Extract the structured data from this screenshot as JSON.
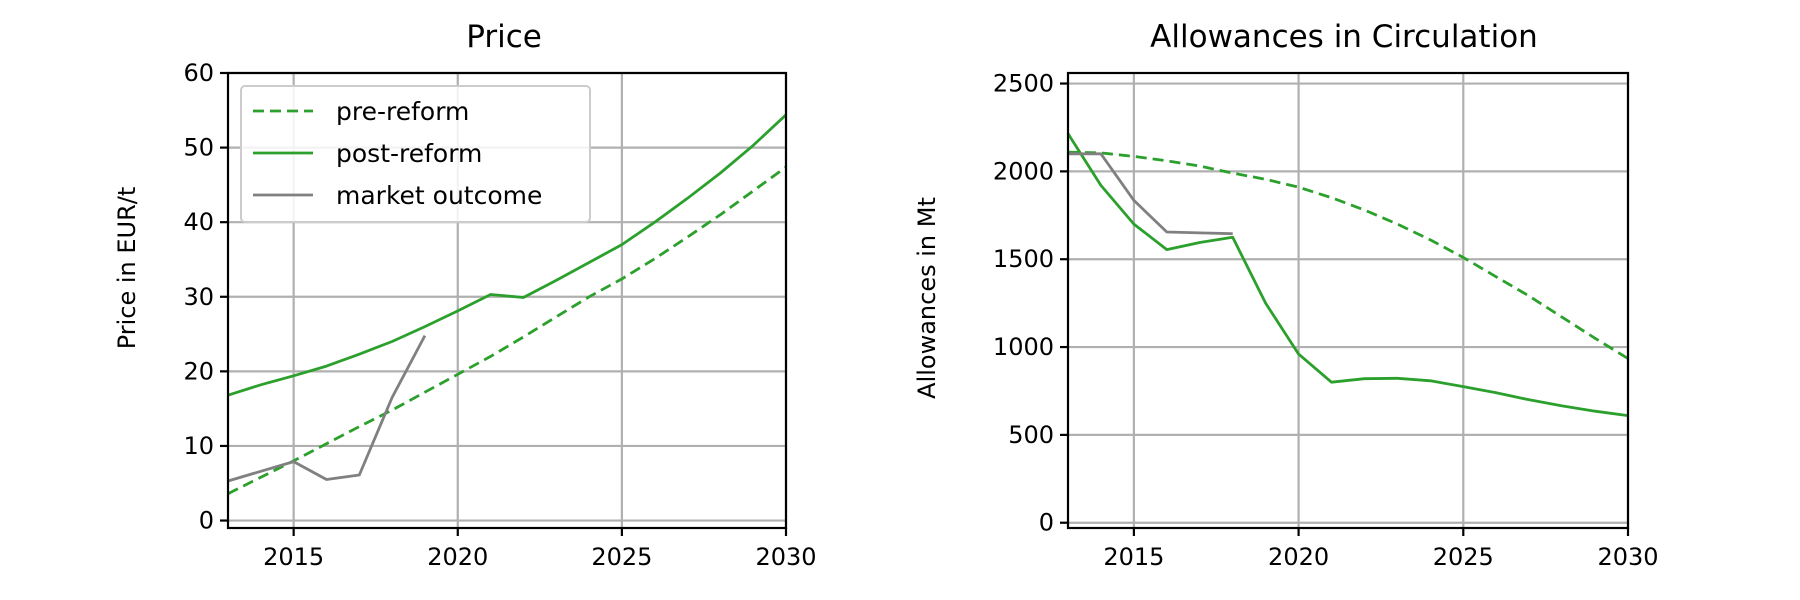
{
  "colors": {
    "pre_reform": "#2ca02c",
    "post_reform": "#2ca02c",
    "market_outcome": "#808080"
  },
  "chart_data": [
    {
      "type": "line",
      "title": "Price",
      "xlabel": "",
      "ylabel": "Price in EUR/t",
      "xlim": [
        2013,
        2030
      ],
      "ylim": [
        -1,
        60
      ],
      "xticks": [
        2015,
        2020,
        2025,
        2030
      ],
      "yticks": [
        0,
        10,
        20,
        30,
        40,
        50,
        60
      ],
      "xtick_labels": [
        "2015",
        "2020",
        "2025",
        "2030"
      ],
      "ytick_labels": [
        "0",
        "10",
        "20",
        "30",
        "40",
        "50",
        "60"
      ],
      "grid": true,
      "legend": {
        "placement": "top-left",
        "entries": [
          {
            "label": "pre-reform",
            "style": "dashed",
            "color": "#2ca02c"
          },
          {
            "label": "post-reform",
            "style": "solid",
            "color": "#2ca02c"
          },
          {
            "label": "market outcome",
            "style": "solid",
            "color": "#808080"
          }
        ]
      },
      "series": [
        {
          "name": "pre-reform",
          "style": "dashed",
          "color": "#2ca02c",
          "x": [
            2013,
            2014,
            2015,
            2016,
            2017,
            2018,
            2019,
            2020,
            2021,
            2022,
            2023,
            2024,
            2025,
            2026,
            2027,
            2028,
            2029,
            2030
          ],
          "y": [
            3.6,
            5.8,
            8.0,
            10.3,
            12.6,
            14.8,
            17.2,
            19.6,
            22.0,
            24.6,
            27.3,
            30.0,
            32.4,
            35.1,
            38.0,
            41.0,
            44.2,
            47.4
          ]
        },
        {
          "name": "post-reform",
          "style": "solid",
          "color": "#2ca02c",
          "x": [
            2013,
            2014,
            2015,
            2016,
            2017,
            2018,
            2019,
            2020,
            2021,
            2022,
            2023,
            2024,
            2025,
            2026,
            2027,
            2028,
            2029,
            2030
          ],
          "y": [
            16.8,
            18.2,
            19.4,
            20.7,
            22.3,
            24.0,
            26.0,
            28.1,
            30.3,
            29.9,
            32.2,
            34.6,
            37.0,
            40.0,
            43.2,
            46.6,
            50.3,
            54.4
          ]
        },
        {
          "name": "market outcome",
          "style": "solid",
          "color": "#808080",
          "x": [
            2013,
            2014,
            2015,
            2016,
            2017,
            2018,
            2019
          ],
          "y": [
            5.3,
            6.6,
            7.9,
            5.5,
            6.1,
            16.5,
            24.8
          ]
        }
      ]
    },
    {
      "type": "line",
      "title": "Allowances in Circulation",
      "xlabel": "",
      "ylabel": "Allowances in Mt",
      "xlim": [
        2013,
        2030
      ],
      "ylim": [
        -30,
        2560
      ],
      "xticks": [
        2015,
        2020,
        2025,
        2030
      ],
      "yticks": [
        0,
        500,
        1000,
        1500,
        2000,
        2500
      ],
      "xtick_labels": [
        "2015",
        "2020",
        "2025",
        "2030"
      ],
      "ytick_labels": [
        "0",
        "500",
        "1000",
        "1500",
        "2000",
        "2500"
      ],
      "grid": true,
      "series": [
        {
          "name": "pre-reform",
          "style": "dashed",
          "color": "#2ca02c",
          "x": [
            2013,
            2014,
            2015,
            2016,
            2017,
            2018,
            2019,
            2020,
            2021,
            2022,
            2023,
            2024,
            2025,
            2026,
            2027,
            2028,
            2029,
            2030
          ],
          "y": [
            2110,
            2105,
            2085,
            2060,
            2030,
            1990,
            1955,
            1910,
            1850,
            1780,
            1700,
            1610,
            1510,
            1400,
            1290,
            1170,
            1050,
            935
          ]
        },
        {
          "name": "post-reform",
          "style": "solid",
          "color": "#2ca02c",
          "x": [
            2013,
            2014,
            2015,
            2016,
            2017,
            2018,
            2019,
            2020,
            2021,
            2022,
            2023,
            2024,
            2025,
            2026,
            2027,
            2028,
            2029,
            2030
          ],
          "y": [
            2215,
            1920,
            1700,
            1555,
            1595,
            1625,
            1250,
            960,
            800,
            820,
            822,
            808,
            775,
            740,
            700,
            665,
            635,
            610
          ]
        },
        {
          "name": "market outcome",
          "style": "solid",
          "color": "#808080",
          "x": [
            2013,
            2014,
            2015,
            2016,
            2017,
            2018
          ],
          "y": [
            2100,
            2100,
            1835,
            1655,
            1650,
            1645
          ]
        }
      ]
    }
  ]
}
